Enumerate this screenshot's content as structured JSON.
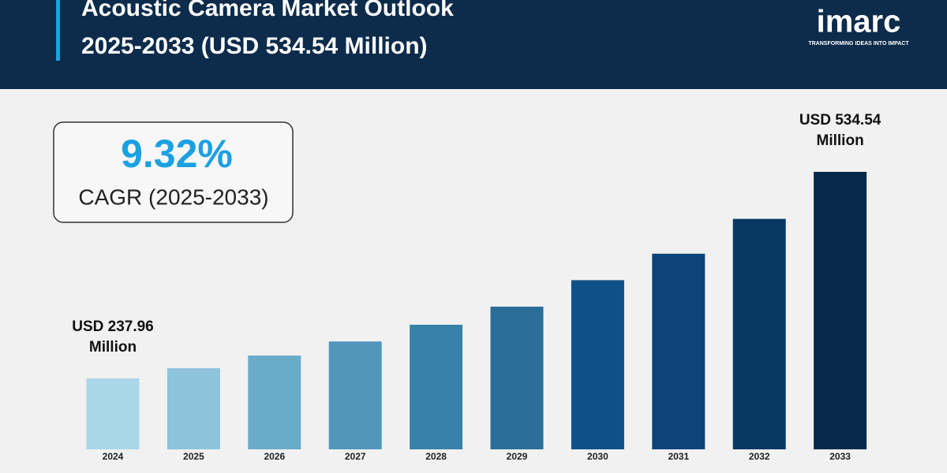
{
  "chart_data": {
    "type": "bar",
    "title": [
      "Acoustic Camera Market Outlook",
      "2025-2033 (USD 534.54 Million)"
    ],
    "logo": {
      "name": "imarc",
      "tagline": "TRANSFORMING IDEAS INTO IMPACT"
    },
    "cagr": {
      "value_text": "9.32%",
      "label": "CAGR (2025-2033)"
    },
    "categories": [
      "2024",
      "2025",
      "2026",
      "2027",
      "2028",
      "2029",
      "2030",
      "2031",
      "2032",
      "2033"
    ],
    "values": [
      237.96,
      252.6,
      270.8,
      291,
      315,
      341,
      379,
      417,
      467,
      534.54
    ],
    "value_labels": [
      [
        "USD 237.96",
        "Million"
      ],
      null,
      null,
      null,
      null,
      null,
      null,
      null,
      null,
      [
        "USD 534.54",
        "Million"
      ]
    ],
    "colors": [
      "#a9d6e8",
      "#8dc3db",
      "#6aabc9",
      "#5097bb",
      "#3781a8",
      "#2b6e97",
      "#0e5087",
      "#0b4479",
      "#083863",
      "#072a4a"
    ]
  }
}
